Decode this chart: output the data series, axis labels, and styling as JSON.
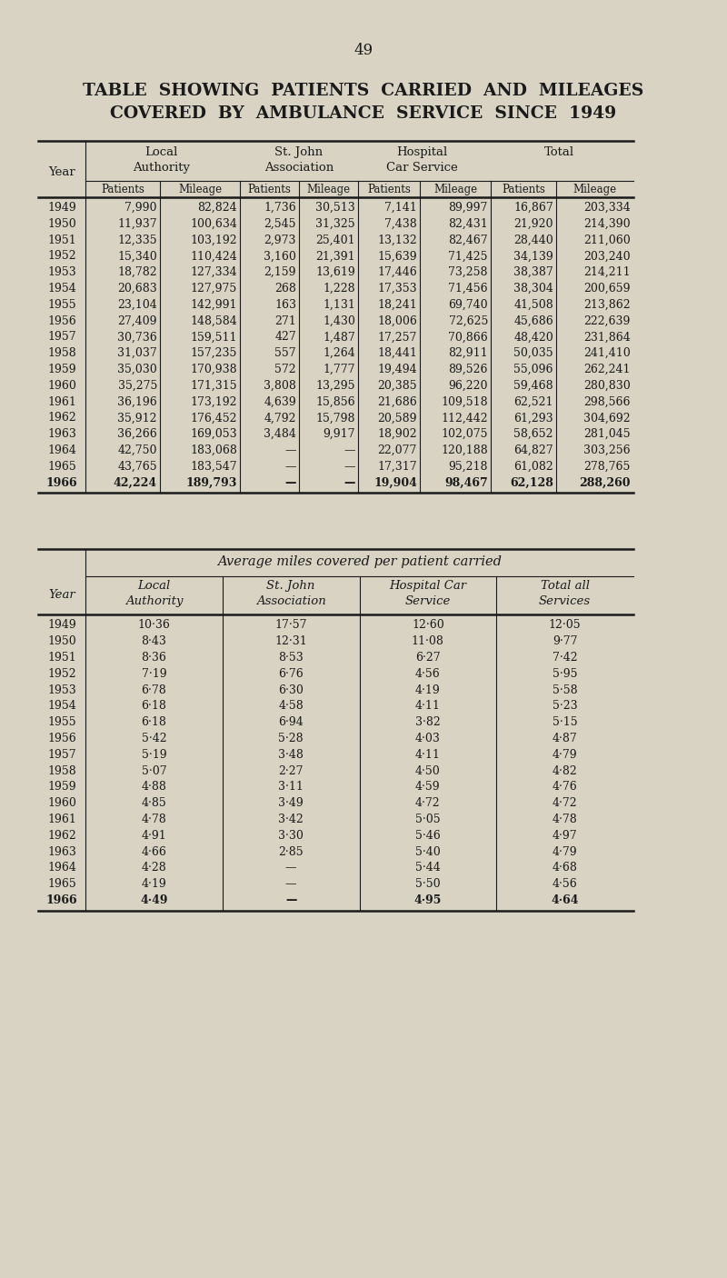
{
  "page_number": "49",
  "title_line1": "TABLE  SHOWING  PATIENTS  CARRIED  AND  MILEAGES",
  "title_line2": "COVERED  BY  AMBULANCE  SERVICE  SINCE  1949",
  "bg_color": "#d9d3c3",
  "text_color": "#1a1a1a",
  "table1": {
    "years": [
      "1949",
      "1950",
      "1951",
      "1952",
      "1953",
      "1954",
      "1955",
      "1956",
      "1957",
      "1958",
      "1959",
      "1960",
      "1961",
      "1962",
      "1963",
      "1964",
      "1965",
      "1966"
    ],
    "bold_years": [
      "1966"
    ],
    "data": [
      [
        "7,990",
        "82,824",
        "1,736",
        "30,513",
        "7,141",
        "89,997",
        "16,867",
        "203,334"
      ],
      [
        "11,937",
        "100,634",
        "2,545",
        "31,325",
        "7,438",
        "82,431",
        "21,920",
        "214,390"
      ],
      [
        "12,335",
        "103,192",
        "2,973",
        "25,401",
        "13,132",
        "82,467",
        "28,440",
        "211,060"
      ],
      [
        "15,340",
        "110,424",
        "3,160",
        "21,391",
        "15,639",
        "71,425",
        "34,139",
        "203,240"
      ],
      [
        "18,782",
        "127,334",
        "2,159",
        "13,619",
        "17,446",
        "73,258",
        "38,387",
        "214,211"
      ],
      [
        "20,683",
        "127,975",
        "268",
        "1,228",
        "17,353",
        "71,456",
        "38,304",
        "200,659"
      ],
      [
        "23,104",
        "142,991",
        "163",
        "1,131",
        "18,241",
        "69,740",
        "41,508",
        "213,862"
      ],
      [
        "27,409",
        "148,584",
        "271",
        "1,430",
        "18,006",
        "72,625",
        "45,686",
        "222,639"
      ],
      [
        "30,736",
        "159,511",
        "427",
        "1,487",
        "17,257",
        "70,866",
        "48,420",
        "231,864"
      ],
      [
        "31,037",
        "157,235",
        "557",
        "1,264",
        "18,441",
        "82,911",
        "50,035",
        "241,410"
      ],
      [
        "35,030",
        "170,938",
        "572",
        "1,777",
        "19,494",
        "89,526",
        "55,096",
        "262,241"
      ],
      [
        "35,275",
        "171,315",
        "3,808",
        "13,295",
        "20,385",
        "96,220",
        "59,468",
        "280,830"
      ],
      [
        "36,196",
        "173,192",
        "4,639",
        "15,856",
        "21,686",
        "109,518",
        "62,521",
        "298,566"
      ],
      [
        "35,912",
        "176,452",
        "4,792",
        "15,798",
        "20,589",
        "112,442",
        "61,293",
        "304,692"
      ],
      [
        "36,266",
        "169,053",
        "3,484",
        "9,917",
        "18,902",
        "102,075",
        "58,652",
        "281,045"
      ],
      [
        "42,750",
        "183,068",
        "—",
        "—",
        "22,077",
        "120,188",
        "64,827",
        "303,256"
      ],
      [
        "43,765",
        "183,547",
        "—",
        "—",
        "17,317",
        "95,218",
        "61,082",
        "278,765"
      ],
      [
        "42,224",
        "189,793",
        "—",
        "—",
        "19,904",
        "98,467",
        "62,128",
        "288,260"
      ]
    ]
  },
  "table2": {
    "header_italic": "Average miles covered per patient carried",
    "years": [
      "1949",
      "1950",
      "1951",
      "1952",
      "1953",
      "1954",
      "1955",
      "1956",
      "1957",
      "1958",
      "1959",
      "1960",
      "1961",
      "1962",
      "1963",
      "1964",
      "1965",
      "1966"
    ],
    "bold_years": [
      "1966"
    ],
    "data": [
      [
        "10·36",
        "17·57",
        "12·60",
        "12·05"
      ],
      [
        "8·43",
        "12·31",
        "11·08",
        "9·77"
      ],
      [
        "8·36",
        "8·53",
        "6·27",
        "7·42"
      ],
      [
        "7·19",
        "6·76",
        "4·56",
        "5·95"
      ],
      [
        "6·78",
        "6·30",
        "4·19",
        "5·58"
      ],
      [
        "6·18",
        "4·58",
        "4·11",
        "5·23"
      ],
      [
        "6·18",
        "6·94",
        "3·82",
        "5·15"
      ],
      [
        "5·42",
        "5·28",
        "4·03",
        "4·87"
      ],
      [
        "5·19",
        "3·48",
        "4·11",
        "4·79"
      ],
      [
        "5·07",
        "2·27",
        "4·50",
        "4·82"
      ],
      [
        "4·88",
        "3·11",
        "4·59",
        "4·76"
      ],
      [
        "4·85",
        "3·49",
        "4·72",
        "4·72"
      ],
      [
        "4·78",
        "3·42",
        "5·05",
        "4·78"
      ],
      [
        "4·91",
        "3·30",
        "5·46",
        "4·97"
      ],
      [
        "4·66",
        "2·85",
        "5·40",
        "4·79"
      ],
      [
        "4·28",
        "—",
        "5·44",
        "4·68"
      ],
      [
        "4·19",
        "—",
        "5·50",
        "4·56"
      ],
      [
        "4·49",
        "—",
        "4·95",
        "4·64"
      ]
    ]
  }
}
